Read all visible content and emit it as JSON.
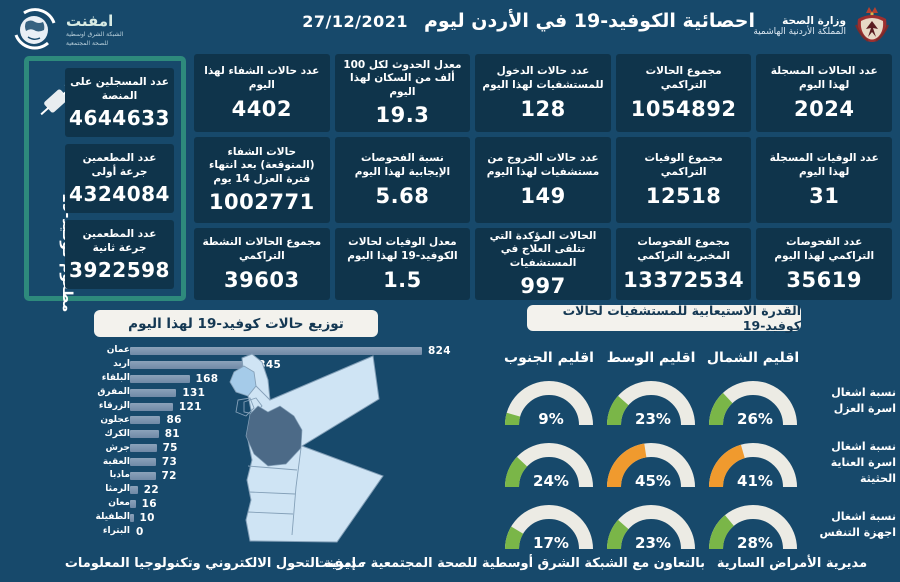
{
  "theme": {
    "bg": "#17496b",
    "card": "#0f344b",
    "teal": "#2e8a7c",
    "pill": "#f3f2ed",
    "pill-text": "#143853",
    "bar": "#7089a6",
    "bar-top": "#8ba2ba",
    "map-light": "#cfe4f4",
    "map-mid": "#a5cbe9",
    "map-dark": "#4c6a87",
    "map-stroke": "#84a0b8"
  },
  "header": {
    "title": "احصائية الكوفيد-19 في الأردن ليوم",
    "date": "27/12/2021",
    "ministry": {
      "line1": "وزارة الصحة",
      "line2": "المملكة الأردنية الهاشمية",
      "icon": "jordan-coat-of-arms-icon"
    },
    "emphnet": {
      "name": "امفنت",
      "sub1": "الشبكة الشرق اوسطية",
      "sub2": "للصحة المجتمعية",
      "icon": "globe-icon"
    }
  },
  "vaccination": {
    "side_label": "مطعوم كوفيد-19",
    "icon": "syringe-icon",
    "cards": [
      {
        "label": "عدد المسجلين على المنصة",
        "value": "4644633"
      },
      {
        "label": "عدد المطعمين جرعة أولى",
        "value": "4324084"
      },
      {
        "label": "عدد المطعمين جرعة ثانية",
        "value": "3922598"
      }
    ]
  },
  "stats": {
    "cards": [
      {
        "label": "عدد الحالات المسجلة لهذا اليوم",
        "value": "2024"
      },
      {
        "label": "مجموع الحالات التراكمي",
        "value": "1054892"
      },
      {
        "label": "عدد حالات الدخول للمستشفيات لهذا اليوم",
        "value": "128"
      },
      {
        "label": "معدل الحدوث لكل 100 ألف من السكان لهذا اليوم",
        "value": "19.3"
      },
      {
        "label": "عدد حالات الشفاء لهذا اليوم",
        "value": "4402"
      },
      {
        "label": "عدد الوفيات المسجلة لهذا اليوم",
        "value": "31"
      },
      {
        "label": "مجموع الوفيات التراكمي",
        "value": "12518"
      },
      {
        "label": "عدد حالات الخروج من مستشفيات لهذا اليوم",
        "value": "149"
      },
      {
        "label": "نسبة الفحوصات الإيجابية لهذا اليوم",
        "value": "5.68"
      },
      {
        "label": "حالات الشفاء (المتوقعة) بعد انتهاء فترة العزل 14 يوم",
        "value": "1002771"
      },
      {
        "label": "عدد الفحوصات التراكمي لهذا اليوم",
        "value": "35619"
      },
      {
        "label": "مجموع الفحوصات المخبرية التراكمي",
        "value": "13372534"
      },
      {
        "label": "الحالات المؤكدة التي تتلقى العلاج في المستشفيات",
        "value": "997"
      },
      {
        "label": "معدل الوفيات لحالات الكوفيد-19 لهذا اليوم",
        "value": "1.5"
      },
      {
        "label": "مجموع الحالات النشطة التراكمي",
        "value": "39603"
      }
    ]
  },
  "chart_data": [
    {
      "type": "bar",
      "orientation": "horizontal",
      "title": "توزيع حالات كوفيد-19 لهذا اليوم",
      "categories": [
        "عمان",
        "اربد",
        "البلقاء",
        "المفرق",
        "الزرقاء",
        "عجلون",
        "الكرك",
        "جرش",
        "العقبة",
        "مادبا",
        "الرمثا",
        "معان",
        "الطفيلة",
        "البتراء"
      ],
      "values": [
        824,
        345,
        168,
        131,
        121,
        86,
        81,
        75,
        73,
        72,
        22,
        16,
        10,
        0
      ],
      "xlim": [
        0,
        824
      ],
      "value_labels": true,
      "grid": false
    },
    {
      "type": "heatmap",
      "subtype": "gauge-grid",
      "title": "القدرة الاستيعابية للمستشفيات لحالات كوفيد-19",
      "columns": [
        "اقليم الشمال",
        "اقليم الوسط",
        "اقليم الجنوب"
      ],
      "rows": [
        {
          "label": "نسبة اشغال اسرة العزل",
          "values": [
            26,
            23,
            9
          ]
        },
        {
          "label": "نسبة اشغال اسرة العناية الحثيثة",
          "values": [
            41,
            45,
            24
          ]
        },
        {
          "label": "نسبة اشغال اجهزة التنفس",
          "values": [
            28,
            23,
            17
          ]
        }
      ],
      "unit": "%",
      "colors": {
        "low": "#7ab648",
        "high": "#f09a2e",
        "track": "#ecebe4",
        "threshold": 40
      }
    }
  ],
  "map": {
    "name": "jordan-choropleth-map",
    "legend_note": "",
    "colors": {
      "light": "#cfe4f4",
      "mid": "#a5cbe9",
      "dark": "#4c6a87"
    }
  },
  "footer": {
    "left": "مديرية التحول الالكتروني وتكنولوجيا المعلومات",
    "center": "بالتعاون مع الشبكة الشرق أوسطية للصحة المجتمعية - إمفنت",
    "right": "مديرية الأمراض السارية"
  }
}
